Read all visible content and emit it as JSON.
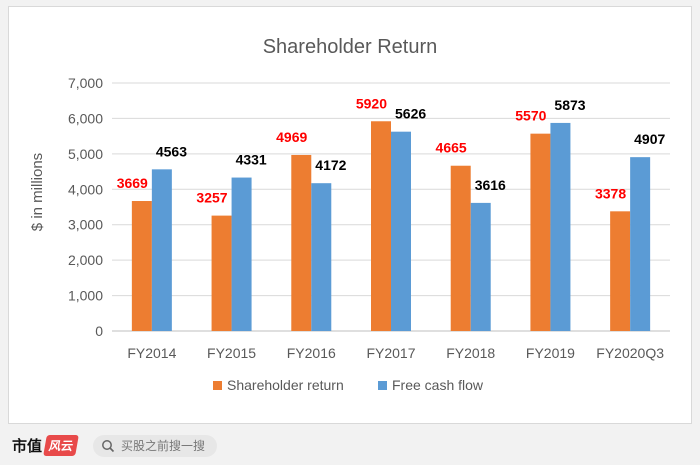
{
  "chart_data": {
    "type": "bar",
    "title": "Shareholder Return",
    "ylabel": "$ in millions",
    "xlabel": "",
    "categories": [
      "FY2014",
      "FY2015",
      "FY2016",
      "FY2017",
      "FY2018",
      "FY2019",
      "FY2020Q3"
    ],
    "series": [
      {
        "name": "Shareholder return",
        "values": [
          3669,
          3257,
          4969,
          5920,
          4665,
          5570,
          3378
        ],
        "color": "#ed7d31",
        "label_color": "#ff0000"
      },
      {
        "name": "Free cash flow",
        "values": [
          4563,
          4331,
          4172,
          5626,
          3616,
          5873,
          4907
        ],
        "color": "#5b9bd5",
        "label_color": "#000000"
      }
    ],
    "ylim": [
      0,
      7000
    ],
    "yticks": [
      "0",
      "1,000",
      "2,000",
      "3,000",
      "4,000",
      "5,000",
      "6,000",
      "7,000"
    ],
    "grid": true,
    "legend": "bottom"
  },
  "footer": {
    "brand": "市值",
    "brand_logo": "风云",
    "search_placeholder": "买股之前搜一搜"
  }
}
